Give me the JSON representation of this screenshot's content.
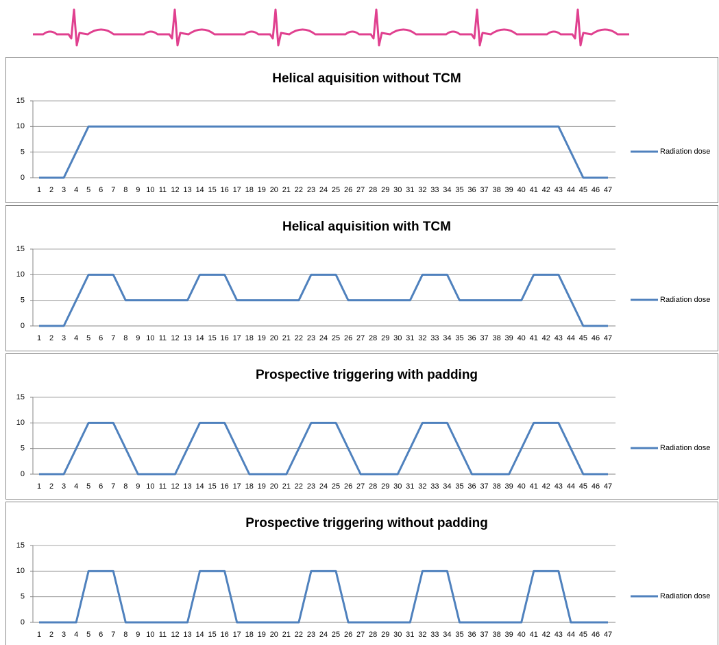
{
  "chart_data": [
    {
      "type": "line",
      "title": "Helical aquisition without TCM",
      "categories": [
        "1",
        "2",
        "3",
        "4",
        "5",
        "6",
        "7",
        "8",
        "9",
        "10",
        "11",
        "12",
        "13",
        "14",
        "15",
        "16",
        "17",
        "18",
        "19",
        "20",
        "21",
        "22",
        "23",
        "24",
        "25",
        "26",
        "27",
        "28",
        "29",
        "30",
        "31",
        "32",
        "33",
        "34",
        "35",
        "36",
        "37",
        "38",
        "39",
        "40",
        "41",
        "42",
        "43",
        "44",
        "45",
        "46",
        "47"
      ],
      "series": [
        {
          "name": "Radiation dose",
          "color": "#4f81bd",
          "values": [
            0,
            0,
            0,
            5,
            10,
            10,
            10,
            10,
            10,
            10,
            10,
            10,
            10,
            10,
            10,
            10,
            10,
            10,
            10,
            10,
            10,
            10,
            10,
            10,
            10,
            10,
            10,
            10,
            10,
            10,
            10,
            10,
            10,
            10,
            10,
            10,
            10,
            10,
            10,
            10,
            10,
            10,
            10,
            5,
            0,
            0,
            0
          ]
        }
      ],
      "ylim": [
        0,
        15
      ],
      "yticks": [
        0,
        5,
        10,
        15
      ],
      "grid": true,
      "legend": "right"
    },
    {
      "type": "line",
      "title": "Helical aquisition with TCM",
      "categories": [
        "1",
        "2",
        "3",
        "4",
        "5",
        "6",
        "7",
        "8",
        "9",
        "10",
        "11",
        "12",
        "13",
        "14",
        "15",
        "16",
        "17",
        "18",
        "19",
        "20",
        "21",
        "22",
        "23",
        "24",
        "25",
        "26",
        "27",
        "28",
        "29",
        "30",
        "31",
        "32",
        "33",
        "34",
        "35",
        "36",
        "37",
        "38",
        "39",
        "40",
        "41",
        "42",
        "43",
        "44",
        "45",
        "46",
        "47"
      ],
      "series": [
        {
          "name": "Radiation dose",
          "color": "#4f81bd",
          "values": [
            0,
            0,
            0,
            5,
            10,
            10,
            10,
            5,
            5,
            5,
            5,
            5,
            5,
            10,
            10,
            10,
            5,
            5,
            5,
            5,
            5,
            5,
            10,
            10,
            10,
            5,
            5,
            5,
            5,
            5,
            5,
            10,
            10,
            10,
            5,
            5,
            5,
            5,
            5,
            5,
            10,
            10,
            10,
            5,
            0,
            0,
            0
          ]
        }
      ],
      "ylim": [
        0,
        15
      ],
      "yticks": [
        0,
        5,
        10,
        15
      ],
      "grid": true,
      "legend": "right"
    },
    {
      "type": "line",
      "title": "Prospective triggering with padding",
      "categories": [
        "1",
        "2",
        "3",
        "4",
        "5",
        "6",
        "7",
        "8",
        "9",
        "10",
        "11",
        "12",
        "13",
        "14",
        "15",
        "16",
        "17",
        "18",
        "19",
        "20",
        "21",
        "22",
        "23",
        "24",
        "25",
        "26",
        "27",
        "28",
        "29",
        "30",
        "31",
        "32",
        "33",
        "34",
        "35",
        "36",
        "37",
        "38",
        "39",
        "40",
        "41",
        "42",
        "43",
        "44",
        "45",
        "46",
        "47"
      ],
      "series": [
        {
          "name": "Radiation dose",
          "color": "#4f81bd",
          "values": [
            0,
            0,
            0,
            5,
            10,
            10,
            10,
            5,
            0,
            0,
            0,
            0,
            5,
            10,
            10,
            10,
            5,
            0,
            0,
            0,
            0,
            5,
            10,
            10,
            10,
            5,
            0,
            0,
            0,
            0,
            5,
            10,
            10,
            10,
            5,
            0,
            0,
            0,
            0,
            5,
            10,
            10,
            10,
            5,
            0,
            0,
            0
          ]
        }
      ],
      "ylim": [
        0,
        15
      ],
      "yticks": [
        0,
        5,
        10,
        15
      ],
      "grid": true,
      "legend": "right"
    },
    {
      "type": "line",
      "title": "Prospective triggering without padding",
      "categories": [
        "1",
        "2",
        "3",
        "4",
        "5",
        "6",
        "7",
        "8",
        "9",
        "10",
        "11",
        "12",
        "13",
        "14",
        "15",
        "16",
        "17",
        "18",
        "19",
        "20",
        "21",
        "22",
        "23",
        "24",
        "25",
        "26",
        "27",
        "28",
        "29",
        "30",
        "31",
        "32",
        "33",
        "34",
        "35",
        "36",
        "37",
        "38",
        "39",
        "40",
        "41",
        "42",
        "43",
        "44",
        "45",
        "46",
        "47"
      ],
      "series": [
        {
          "name": "Radiation dose",
          "color": "#4f81bd",
          "values": [
            0,
            0,
            0,
            0,
            10,
            10,
            10,
            0,
            0,
            0,
            0,
            0,
            0,
            10,
            10,
            10,
            0,
            0,
            0,
            0,
            0,
            0,
            10,
            10,
            10,
            0,
            0,
            0,
            0,
            0,
            0,
            10,
            10,
            10,
            0,
            0,
            0,
            0,
            0,
            0,
            10,
            10,
            10,
            0,
            0,
            0,
            0
          ]
        }
      ],
      "ylim": [
        0,
        15
      ],
      "yticks": [
        0,
        5,
        10,
        15
      ],
      "grid": true,
      "legend": "right"
    }
  ]
}
